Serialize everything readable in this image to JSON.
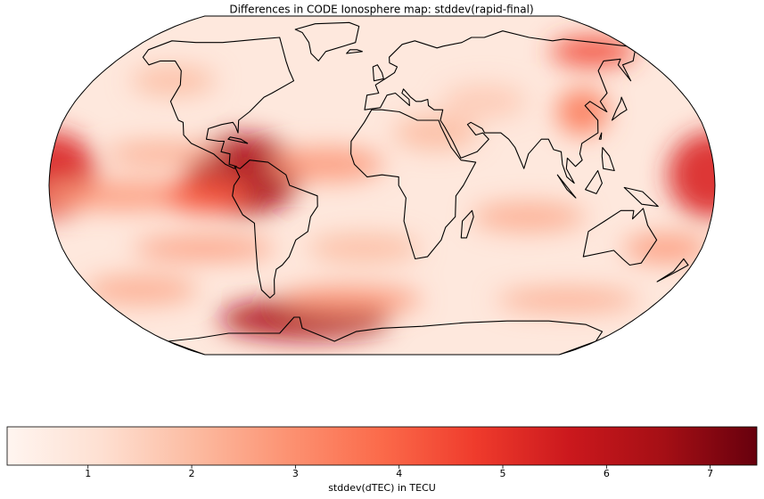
{
  "chart_data": {
    "type": "map",
    "title": "Differences in CODE Ionosphere map: stddev(rapid-final)",
    "colorbar": {
      "label": "stddev(dTEC) in TECU",
      "lim": [
        0.22,
        7.45
      ],
      "ticks": [
        1,
        2,
        3,
        4,
        5,
        6,
        7
      ],
      "colors": [
        "#fff5f0",
        "#fee0d2",
        "#fcbba1",
        "#fc9272",
        "#fb6a4a",
        "#ef3b2c",
        "#cb181d",
        "#a50f15",
        "#67000d"
      ]
    }
  }
}
